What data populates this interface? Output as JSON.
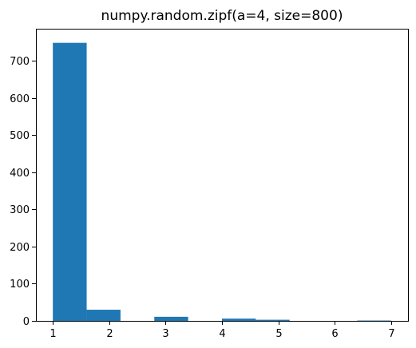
{
  "chart_data": {
    "type": "bar",
    "title": "numpy.random.zipf(a=4, size=800)",
    "xlabel": "",
    "ylabel": "",
    "xlim": [
      0.7,
      7.3
    ],
    "ylim": [
      0,
      787
    ],
    "xticks": [
      1,
      2,
      3,
      4,
      5,
      6,
      7
    ],
    "yticks": [
      0,
      100,
      200,
      300,
      400,
      500,
      600,
      700
    ],
    "bins": [
      {
        "x0": 1.0,
        "x1": 1.6,
        "count": 749
      },
      {
        "x0": 1.6,
        "x1": 2.2,
        "count": 30
      },
      {
        "x0": 2.2,
        "x1": 2.8,
        "count": 0
      },
      {
        "x0": 2.8,
        "x1": 3.4,
        "count": 11
      },
      {
        "x0": 3.4,
        "x1": 4.0,
        "count": 0
      },
      {
        "x0": 4.0,
        "x1": 4.6,
        "count": 6
      },
      {
        "x0": 4.6,
        "x1": 5.2,
        "count": 3
      },
      {
        "x0": 5.2,
        "x1": 5.8,
        "count": 0
      },
      {
        "x0": 5.8,
        "x1": 6.4,
        "count": 0
      },
      {
        "x0": 6.4,
        "x1": 7.0,
        "count": 1
      }
    ],
    "bar_color": "#1f77b4",
    "grid": false,
    "legend": "none"
  }
}
